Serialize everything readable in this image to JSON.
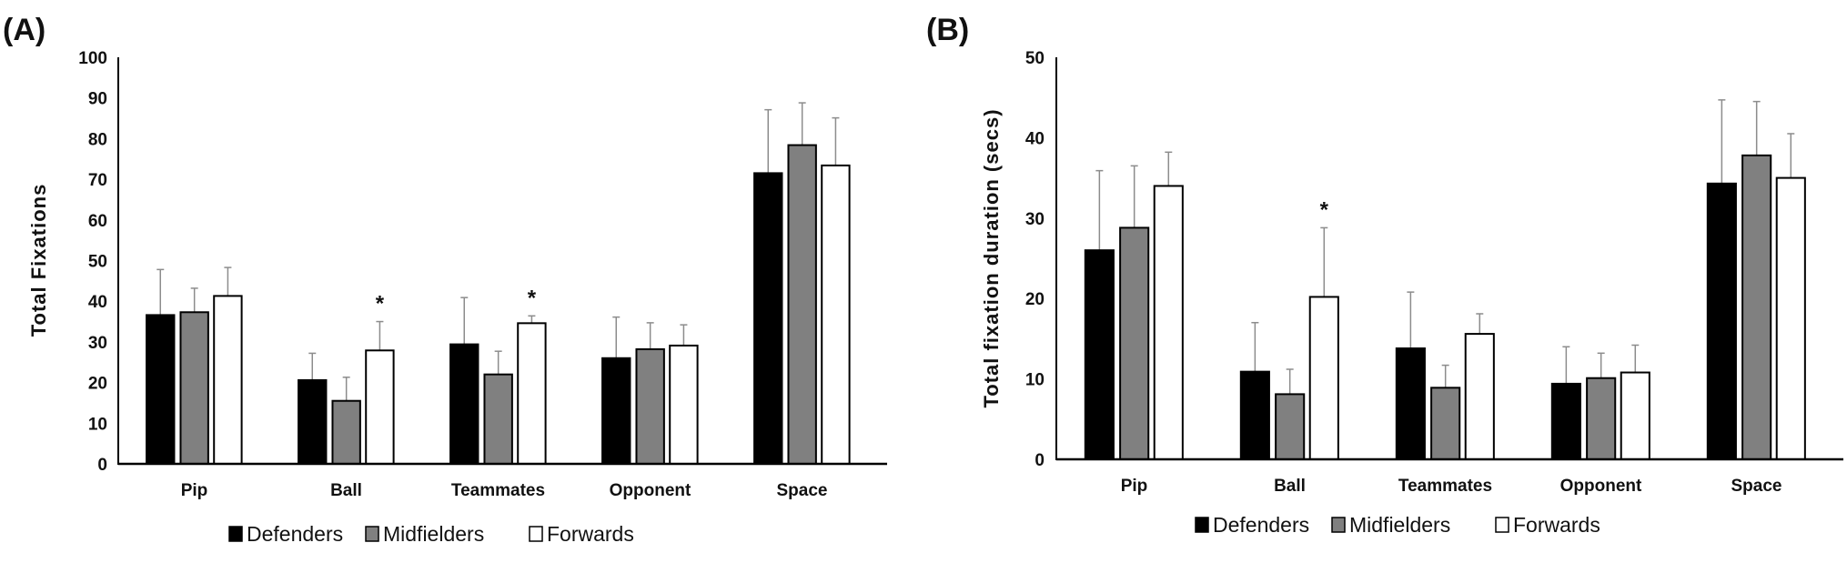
{
  "colors": {
    "Defenders": "#000000",
    "Midfielders": "#808080",
    "Forwards": "#ffffff",
    "error_bar": "#8c8c8c",
    "axis": "#000000"
  },
  "chart_data": [
    {
      "type": "bar",
      "panel_label": "(A)",
      "title": "",
      "xlabel": "",
      "ylabel": "Total Fixations",
      "ylim": [
        0,
        100
      ],
      "yticks": [
        0,
        10,
        20,
        30,
        40,
        50,
        60,
        70,
        80,
        90,
        100
      ],
      "grid": false,
      "legend_placement": "bottom",
      "categories": [
        "Pip",
        "Ball",
        "Teammates",
        "Opponent",
        "Space"
      ],
      "series": [
        {
          "name": "Defenders",
          "values": [
            36.6,
            20.6,
            29.4,
            26.0,
            71.5
          ],
          "error_upper": [
            47.8,
            27.2,
            40.9,
            36.1,
            87.1
          ]
        },
        {
          "name": "Midfielders",
          "values": [
            37.3,
            15.5,
            22.0,
            28.2,
            78.4
          ],
          "error_upper": [
            43.2,
            21.3,
            27.7,
            34.7,
            88.8
          ]
        },
        {
          "name": "Forwards",
          "values": [
            41.3,
            27.9,
            34.6,
            29.1,
            73.4
          ],
          "error_upper": [
            48.3,
            35.0,
            36.4,
            34.2,
            85.1
          ]
        }
      ],
      "annotations": [
        {
          "text": "*",
          "category": "Ball",
          "series": "Forwards"
        },
        {
          "text": "*",
          "category": "Teammates",
          "series": "Forwards"
        }
      ]
    },
    {
      "type": "bar",
      "panel_label": "(B)",
      "title": "",
      "xlabel": "",
      "ylabel": "Total fixation duration (secs)",
      "ylim": [
        0,
        50
      ],
      "yticks": [
        0,
        10,
        20,
        30,
        40,
        50
      ],
      "grid": false,
      "legend_placement": "bottom",
      "categories": [
        "Pip",
        "Ball",
        "Teammates",
        "Opponent",
        "Space"
      ],
      "series": [
        {
          "name": "Defenders",
          "values": [
            26.0,
            10.9,
            13.8,
            9.4,
            34.3
          ],
          "error_upper": [
            35.9,
            17.0,
            20.8,
            14.0,
            44.7
          ]
        },
        {
          "name": "Midfielders",
          "values": [
            28.8,
            8.1,
            8.9,
            10.1,
            37.8
          ],
          "error_upper": [
            36.5,
            11.2,
            11.7,
            13.2,
            44.5
          ]
        },
        {
          "name": "Forwards",
          "values": [
            34.0,
            20.2,
            15.6,
            10.8,
            35.0
          ],
          "error_upper": [
            38.2,
            28.8,
            18.1,
            14.2,
            40.5
          ]
        }
      ],
      "annotations": [
        {
          "text": "*",
          "category": "Ball",
          "series": "Forwards"
        }
      ]
    }
  ]
}
